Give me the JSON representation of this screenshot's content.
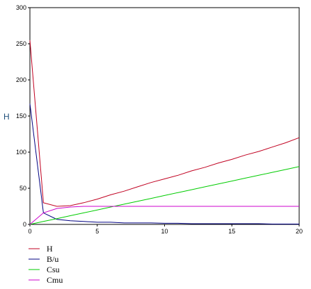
{
  "chart_data": {
    "type": "line",
    "ylabel": "H",
    "xlabel": "",
    "xlim": [
      0,
      20
    ],
    "ylim": [
      0,
      300
    ],
    "x_ticks": [
      0,
      5,
      10,
      15,
      20
    ],
    "y_ticks": [
      0,
      50,
      100,
      150,
      200,
      250,
      300
    ],
    "x_tick_labels": [
      "0",
      "5",
      "10",
      "15",
      "20"
    ],
    "y_tick_labels": [
      "0",
      "50",
      "100",
      "150",
      "200",
      "250",
      "300"
    ],
    "grid": false,
    "legend_position": "bottom-left",
    "x": [
      0,
      1,
      2,
      3,
      4,
      5,
      6,
      7,
      8,
      9,
      10,
      11,
      12,
      13,
      14,
      15,
      16,
      17,
      18,
      19,
      20
    ],
    "series": [
      {
        "name": "H",
        "color": "#c00020",
        "values": [
          255,
          30,
          25,
          26,
          30,
          35,
          41,
          46,
          52,
          58,
          63,
          68,
          74,
          79,
          85,
          90,
          96,
          101,
          107,
          113,
          120
        ]
      },
      {
        "name": "B/u",
        "color": "#000080",
        "values": [
          167,
          16,
          7,
          5,
          4,
          3,
          3,
          2,
          2,
          2,
          1.5,
          1.5,
          1,
          1,
          1,
          1,
          1,
          1,
          0.5,
          0.5,
          0.5
        ]
      },
      {
        "name": "Csu",
        "color": "#00cc00",
        "values": [
          0,
          4,
          8,
          12,
          16,
          20,
          24,
          28,
          32,
          36,
          40,
          44,
          48,
          52,
          56,
          60,
          64,
          68,
          72,
          76,
          80
        ]
      },
      {
        "name": "Cmu",
        "color": "#cc00cc",
        "values": [
          0,
          16,
          22,
          24,
          25,
          25,
          25,
          25,
          25,
          25,
          25,
          25,
          25,
          25,
          25,
          25,
          25,
          25,
          25,
          25,
          25
        ]
      }
    ]
  }
}
